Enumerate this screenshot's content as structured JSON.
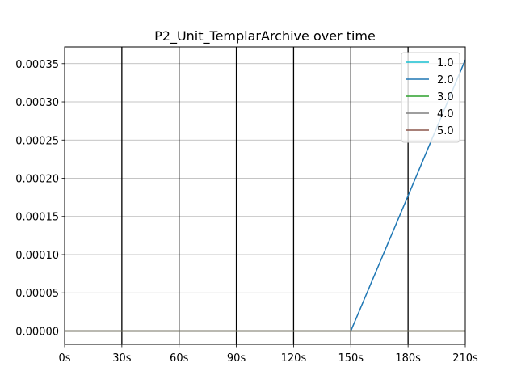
{
  "chart_data": {
    "type": "line",
    "title": "P2_Unit_TemplarArchive over time",
    "xlabel": "",
    "ylabel": "",
    "x": [
      0,
      30,
      60,
      90,
      120,
      150,
      180,
      210
    ],
    "x_tick_labels": [
      "0s",
      "30s",
      "60s",
      "90s",
      "120s",
      "150s",
      "180s",
      "210s"
    ],
    "xlim": [
      0,
      210
    ],
    "ylim": [
      -1.75e-05,
      0.000372
    ],
    "y_ticks": [
      0,
      5e-05,
      0.0001,
      0.00015,
      0.0002,
      0.00025,
      0.0003,
      0.00035
    ],
    "y_tick_labels": [
      "0.00000",
      "0.00005",
      "0.00010",
      "0.00015",
      "0.00020",
      "0.00025",
      "0.00030",
      "0.00035"
    ],
    "grid": {
      "horizontal": true,
      "vertical_lines_at_x_ticks": true
    },
    "legend_position": "top-right",
    "series": [
      {
        "name": "1.0",
        "color": "#17becf",
        "values": [
          0,
          0,
          0,
          0,
          0,
          0,
          0,
          0
        ]
      },
      {
        "name": "2.0",
        "color": "#1f77b4",
        "values": [
          0,
          0,
          0,
          0,
          0,
          0,
          0.000177,
          0.000355
        ]
      },
      {
        "name": "3.0",
        "color": "#2ca02c",
        "values": [
          0,
          0,
          0,
          0,
          0,
          0,
          0,
          0
        ]
      },
      {
        "name": "4.0",
        "color": "#7f7f7f",
        "values": [
          0,
          0,
          0,
          0,
          0,
          0,
          0,
          0
        ]
      },
      {
        "name": "5.0",
        "color": "#8c564b",
        "values": [
          0,
          0,
          0,
          0,
          0,
          0,
          0,
          0
        ]
      }
    ]
  }
}
